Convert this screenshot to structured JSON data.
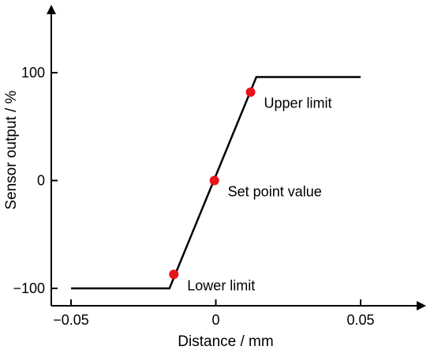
{
  "chart_data": {
    "type": "line",
    "title": "",
    "xlabel": "Distance / mm",
    "ylabel": "Sensor output / %",
    "xlim": [
      -0.05,
      0.07
    ],
    "ylim": [
      -115,
      160
    ],
    "xticks": [
      -0.05,
      0,
      0.05
    ],
    "xtick_labels": [
      "−0.05",
      "0",
      "0.05"
    ],
    "yticks": [
      -100,
      0,
      100
    ],
    "ytick_labels": [
      "−100",
      "0",
      "100"
    ],
    "grid": false,
    "legend": "none",
    "series": [
      {
        "x": [
          -0.05,
          -0.016,
          0.014,
          0.05
        ],
        "y": [
          -100,
          -100,
          96,
          96
        ],
        "color": "#000000"
      }
    ],
    "points": [
      {
        "label": "Upper limit",
        "x": 0.012,
        "y": 82,
        "color": "#e8141b"
      },
      {
        "label": "Set point value",
        "x": -0.0005,
        "y": 0,
        "color": "#e8141b"
      },
      {
        "label": "Lower limit",
        "x": -0.0145,
        "y": -87,
        "color": "#e8141b"
      }
    ]
  }
}
